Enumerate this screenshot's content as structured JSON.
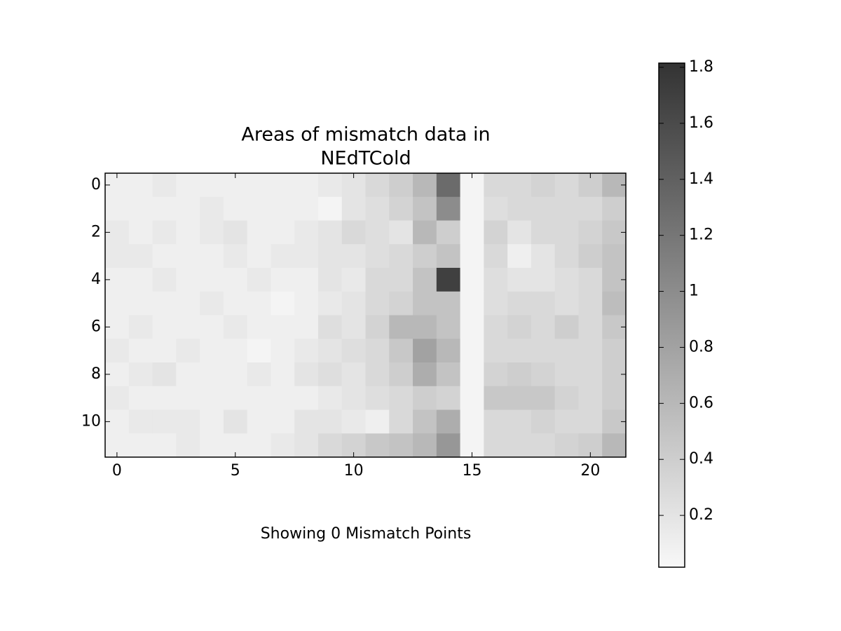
{
  "chart_data": {
    "type": "heatmap",
    "title": [
      "Areas of mismatch data in",
      "NEdTCold"
    ],
    "annotation": "Showing 0 Mismatch Points",
    "xlim": [
      -0.5,
      21.5
    ],
    "ylim": [
      11.5,
      -0.5
    ],
    "xticks": [
      0,
      5,
      10,
      15,
      20
    ],
    "yticks": [
      0,
      2,
      4,
      6,
      8,
      10
    ],
    "colormap": [
      "#f8f8f8",
      "#333333"
    ],
    "clim": [
      0.015,
      1.815
    ],
    "cticks": [
      0.2,
      0.4,
      0.6,
      0.8,
      1,
      1.2,
      1.4,
      1.6,
      1.8
    ],
    "z": [
      [
        0.1,
        0.1,
        0.15,
        0.1,
        0.1,
        0.1,
        0.1,
        0.1,
        0.1,
        0.15,
        0.2,
        0.3,
        0.4,
        0.6,
        1.3,
        0.05,
        0.3,
        0.3,
        0.35,
        0.3,
        0.4,
        0.6
      ],
      [
        0.1,
        0.1,
        0.1,
        0.1,
        0.15,
        0.1,
        0.1,
        0.1,
        0.1,
        0.05,
        0.2,
        0.25,
        0.35,
        0.5,
        1.0,
        0.05,
        0.25,
        0.3,
        0.3,
        0.3,
        0.3,
        0.4
      ],
      [
        0.15,
        0.1,
        0.15,
        0.1,
        0.15,
        0.2,
        0.1,
        0.1,
        0.15,
        0.2,
        0.3,
        0.25,
        0.2,
        0.6,
        0.4,
        0.05,
        0.35,
        0.2,
        0.3,
        0.3,
        0.35,
        0.45
      ],
      [
        0.15,
        0.15,
        0.1,
        0.1,
        0.1,
        0.15,
        0.1,
        0.15,
        0.15,
        0.2,
        0.2,
        0.25,
        0.3,
        0.4,
        0.5,
        0.05,
        0.3,
        0.1,
        0.2,
        0.3,
        0.4,
        0.5
      ],
      [
        0.1,
        0.1,
        0.15,
        0.1,
        0.1,
        0.1,
        0.15,
        0.1,
        0.1,
        0.2,
        0.15,
        0.3,
        0.3,
        0.5,
        1.7,
        0.05,
        0.25,
        0.2,
        0.2,
        0.25,
        0.3,
        0.5
      ],
      [
        0.1,
        0.1,
        0.1,
        0.1,
        0.15,
        0.1,
        0.1,
        0.05,
        0.1,
        0.15,
        0.2,
        0.3,
        0.35,
        0.5,
        0.5,
        0.05,
        0.25,
        0.3,
        0.3,
        0.25,
        0.3,
        0.55
      ],
      [
        0.1,
        0.15,
        0.1,
        0.1,
        0.1,
        0.15,
        0.1,
        0.1,
        0.1,
        0.25,
        0.2,
        0.35,
        0.6,
        0.6,
        0.5,
        0.05,
        0.3,
        0.35,
        0.3,
        0.4,
        0.3,
        0.45
      ],
      [
        0.15,
        0.1,
        0.1,
        0.15,
        0.1,
        0.1,
        0.05,
        0.1,
        0.15,
        0.2,
        0.25,
        0.3,
        0.45,
        0.8,
        0.6,
        0.05,
        0.3,
        0.3,
        0.3,
        0.3,
        0.3,
        0.4
      ],
      [
        0.1,
        0.15,
        0.2,
        0.1,
        0.1,
        0.1,
        0.15,
        0.1,
        0.2,
        0.25,
        0.2,
        0.3,
        0.4,
        0.7,
        0.5,
        0.05,
        0.35,
        0.4,
        0.35,
        0.3,
        0.3,
        0.4
      ],
      [
        0.15,
        0.1,
        0.1,
        0.1,
        0.1,
        0.1,
        0.1,
        0.1,
        0.1,
        0.15,
        0.2,
        0.25,
        0.3,
        0.4,
        0.35,
        0.05,
        0.45,
        0.45,
        0.45,
        0.35,
        0.3,
        0.4
      ],
      [
        0.1,
        0.15,
        0.15,
        0.15,
        0.1,
        0.2,
        0.1,
        0.1,
        0.2,
        0.2,
        0.15,
        0.1,
        0.3,
        0.5,
        0.7,
        0.05,
        0.3,
        0.3,
        0.35,
        0.3,
        0.3,
        0.45
      ],
      [
        0.1,
        0.1,
        0.1,
        0.15,
        0.1,
        0.1,
        0.1,
        0.15,
        0.2,
        0.3,
        0.35,
        0.45,
        0.5,
        0.6,
        0.9,
        0.05,
        0.3,
        0.3,
        0.3,
        0.35,
        0.4,
        0.6
      ]
    ]
  }
}
